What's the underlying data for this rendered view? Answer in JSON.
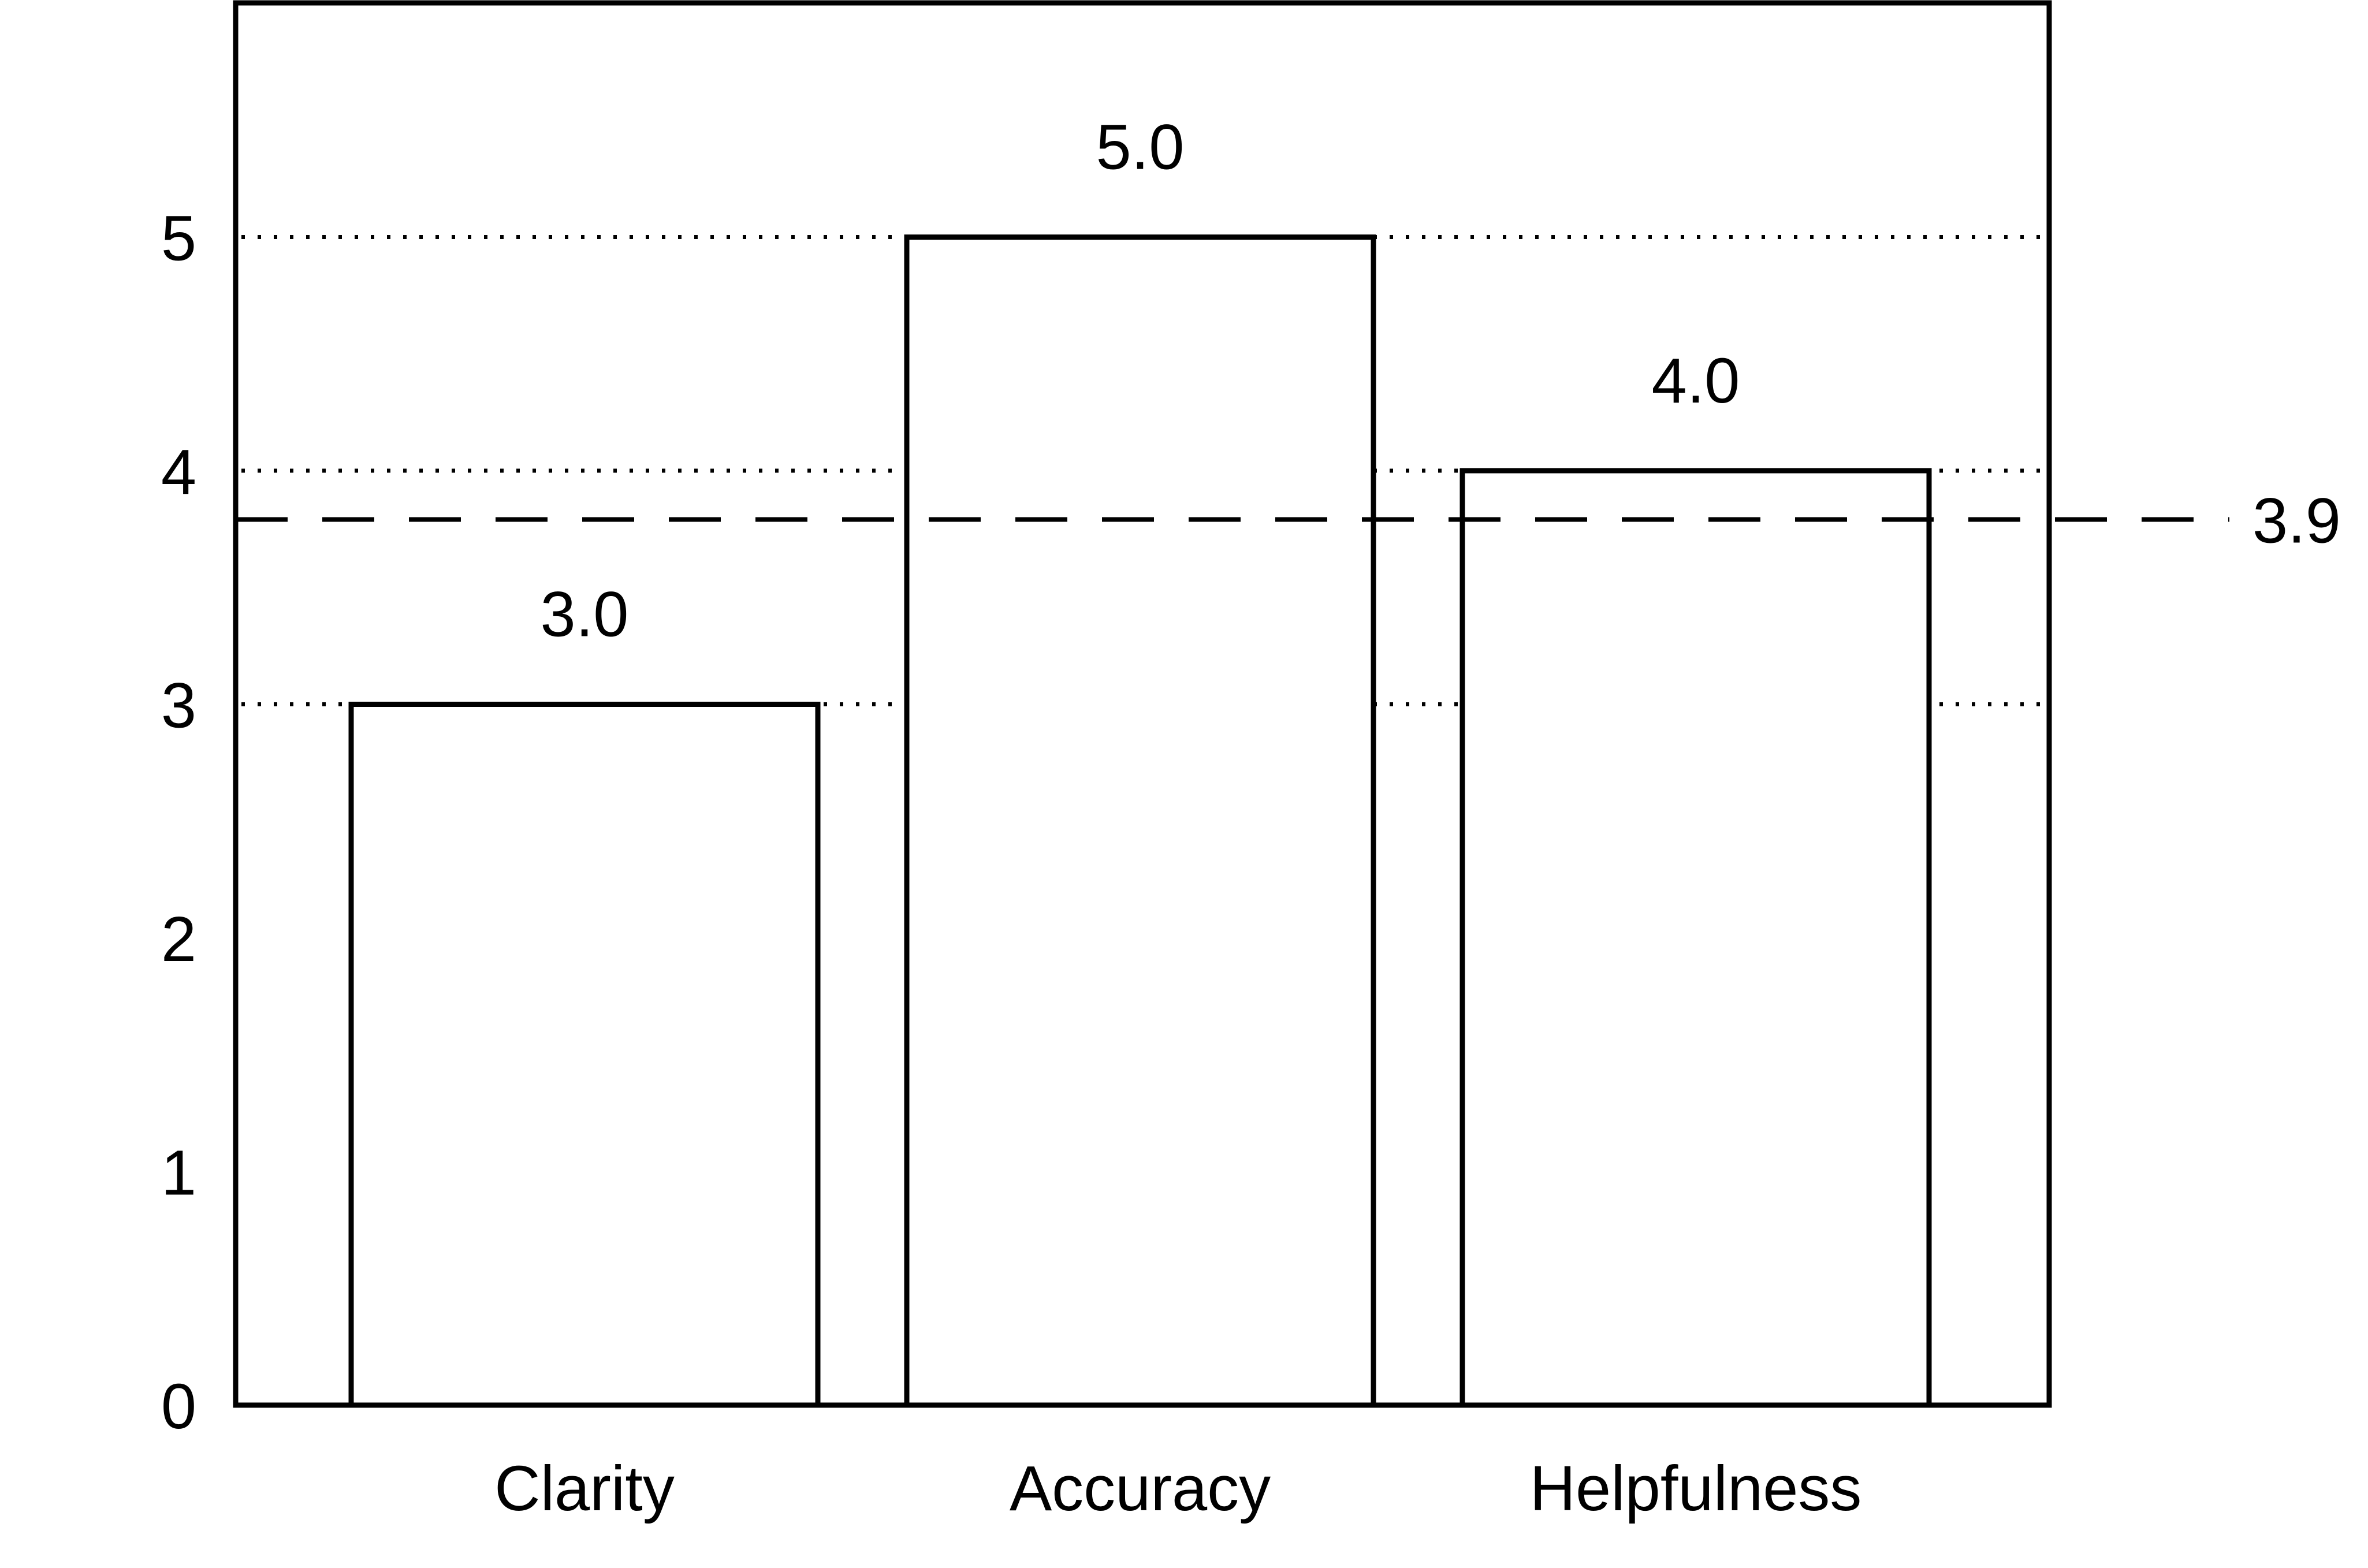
{
  "chart_data": {
    "type": "bar",
    "title": "",
    "xlabel": "",
    "ylabel": "",
    "categories": [
      "Clarity",
      "Accuracy",
      "Helpfulness"
    ],
    "values": [
      3.0,
      5.0,
      4.0
    ],
    "value_labels": [
      "3.0",
      "5.0",
      "4.0"
    ],
    "yticks": [
      0,
      1,
      2,
      3,
      4,
      5
    ],
    "ytick_labels": [
      "0",
      "1",
      "2",
      "3",
      "4",
      "5"
    ],
    "ylim": [
      0,
      6
    ],
    "grid": {
      "axis": "y",
      "style": "dotted",
      "values": [
        3,
        4,
        5
      ]
    },
    "reference_line": {
      "value": 3.9,
      "label": "3.9",
      "style": "dashed"
    },
    "bar_fill": "#ffffff",
    "bar_edge": "#000000",
    "legend": "none"
  }
}
